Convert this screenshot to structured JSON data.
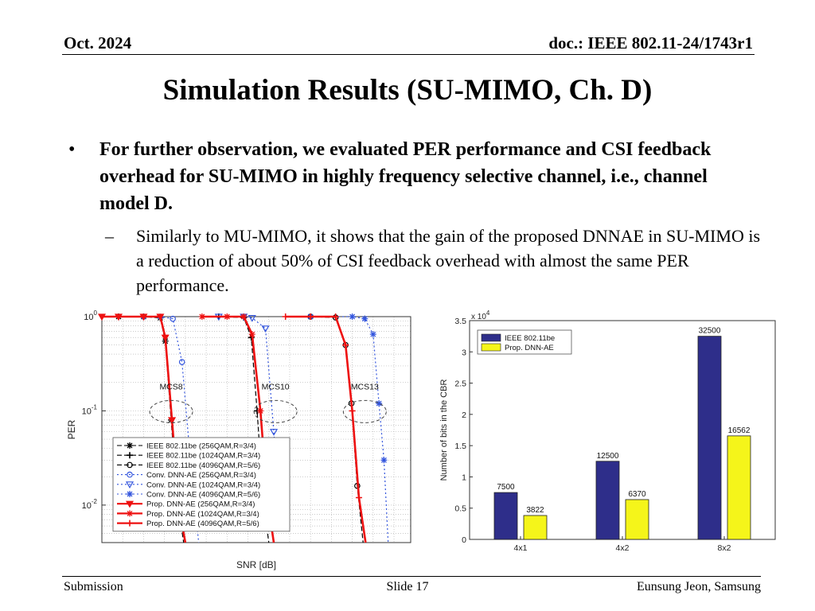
{
  "header": {
    "date": "Oct. 2024",
    "doc": "doc.: IEEE 802.11-24/1743r1"
  },
  "title": "Simulation Results (SU-MIMO, Ch. D)",
  "bullet": "For further observation, we evaluated PER performance and CSI feedback overhead for SU-MIMO in highly frequency selective channel, i.e., channel model D.",
  "sub_bullet": "Similarly to MU-MIMO, it shows that the gain of the proposed DNNAE in SU-MIMO is a reduction of about 50% of CSI feedback overhead with almost the same PER performance.",
  "bullet_marker": "•",
  "sub_bullet_marker": "–",
  "footer": {
    "left": "Submission",
    "center": "Slide 17",
    "right": "Eunsung Jeon, Samsung"
  },
  "chart_data": [
    {
      "type": "line",
      "xlabel": "SNR [dB]",
      "ylabel": "PER",
      "yscale": "log",
      "ylim": [
        0.004,
        1
      ],
      "y_ticks": [
        {
          "value": 1,
          "base": "10",
          "exp": "0"
        },
        {
          "value": 0.1,
          "base": "10",
          "exp": "-1"
        },
        {
          "value": 0.01,
          "base": "10",
          "exp": "-2"
        }
      ],
      "grid": true,
      "legend": "bottom-left",
      "annotations": [
        {
          "text": "MCS8",
          "x": 8.3,
          "y": 0.145
        },
        {
          "text": "MCS10",
          "x": 20.8,
          "y": 0.145
        },
        {
          "text": "MCS13",
          "x": 31.5,
          "y": 0.145
        }
      ],
      "series": [
        {
          "name": "IEEE 802.11be (256QAM,R=3/4)",
          "color": "#000000",
          "dash": "6,3",
          "marker": "star",
          "points": [
            [
              2,
              1
            ],
            [
              5,
              1
            ],
            [
              7,
              0.97
            ],
            [
              7.6,
              0.55
            ],
            [
              8.3,
              0.08
            ],
            [
              9,
              0.012
            ],
            [
              9.8,
              0.0025
            ]
          ]
        },
        {
          "name": "IEEE 802.11be (1024QAM,R=3/4)",
          "color": "#000000",
          "dash": "6,3",
          "marker": "plus",
          "points": [
            [
              14,
              1
            ],
            [
              17,
              0.98
            ],
            [
              17.9,
              0.6
            ],
            [
              18.6,
              0.1
            ],
            [
              19.3,
              0.012
            ],
            [
              20,
              0.0025
            ]
          ]
        },
        {
          "name": "IEEE 802.11be (4096QAM,R=5/6)",
          "color": "#000000",
          "dash": "6,3",
          "marker": "circle",
          "points": [
            [
              25,
              1
            ],
            [
              28,
              0.98
            ],
            [
              29.2,
              0.5
            ],
            [
              29.9,
              0.12
            ],
            [
              30.6,
              0.016
            ],
            [
              31.3,
              0.003
            ]
          ]
        },
        {
          "name": "Conv. DNN-AE (256QAM,R=3/4)",
          "color": "#3355dd",
          "dash": "2,3",
          "marker": "circle",
          "points": [
            [
              5,
              1
            ],
            [
              7,
              1
            ],
            [
              8.5,
              0.95
            ],
            [
              9.6,
              0.33
            ],
            [
              10.6,
              0.03
            ],
            [
              11.6,
              0.004
            ]
          ]
        },
        {
          "name": "Conv. DNN-AE (1024QAM,R=3/4)",
          "color": "#3355dd",
          "dash": "2,3",
          "marker": "triangle",
          "points": [
            [
              14,
              1
            ],
            [
              17,
              1
            ],
            [
              18,
              0.97
            ],
            [
              19.6,
              0.75
            ],
            [
              20.6,
              0.06
            ],
            [
              21.4,
              0.006
            ]
          ]
        },
        {
          "name": "Conv. DNN-AE (4096QAM,R=5/6)",
          "color": "#3355dd",
          "dash": "2,3",
          "marker": "star",
          "points": [
            [
              25,
              1
            ],
            [
              30,
              1
            ],
            [
              31.5,
              0.95
            ],
            [
              32.5,
              0.65
            ],
            [
              33.2,
              0.12
            ],
            [
              33.8,
              0.03
            ],
            [
              34.3,
              0.004
            ]
          ]
        },
        {
          "name": "Prop. DNN-AE (256QAM,R=3/4)",
          "color": "#ee1111",
          "dash": "",
          "marker": "triangle",
          "points": [
            [
              0,
              1
            ],
            [
              2,
              1
            ],
            [
              5,
              1
            ],
            [
              7,
              1
            ],
            [
              7.6,
              0.6
            ],
            [
              8.4,
              0.08
            ],
            [
              9.2,
              0.01
            ],
            [
              10,
              0.002
            ]
          ]
        },
        {
          "name": "Prop. DNN-AE (1024QAM,R=3/4)",
          "color": "#ee1111",
          "dash": "",
          "marker": "star",
          "points": [
            [
              12,
              1
            ],
            [
              15,
              1
            ],
            [
              17,
              1
            ],
            [
              18,
              0.65
            ],
            [
              19,
              0.1
            ],
            [
              19.8,
              0.012
            ],
            [
              20.6,
              0.002
            ]
          ]
        },
        {
          "name": "Prop. DNN-AE (4096QAM,R=5/6)",
          "color": "#ee1111",
          "dash": "",
          "marker": "plus",
          "points": [
            [
              22,
              1
            ],
            [
              25,
              1
            ],
            [
              28,
              1
            ],
            [
              29.2,
              0.5
            ],
            [
              30,
              0.1
            ],
            [
              30.8,
              0.012
            ],
            [
              31.6,
              0.002
            ]
          ]
        }
      ]
    },
    {
      "type": "bar",
      "categories": [
        "4x1",
        "4x2",
        "8x2"
      ],
      "ylabel": "Number of bits in the CBR",
      "y_multiplier_label": "x 10",
      "y_multiplier_exp": "4",
      "ylim": [
        0,
        35000
      ],
      "y_ticks": [
        {
          "value": 0,
          "label": "0"
        },
        {
          "value": 5000,
          "label": "0.5"
        },
        {
          "value": 10000,
          "label": "1"
        },
        {
          "value": 15000,
          "label": "1.5"
        },
        {
          "value": 20000,
          "label": "2"
        },
        {
          "value": 25000,
          "label": "2.5"
        },
        {
          "value": 30000,
          "label": "3"
        },
        {
          "value": 35000,
          "label": "3.5"
        }
      ],
      "grid": false,
      "legend": "top-left",
      "series": [
        {
          "name": "IEEE 802.11be",
          "color": "#2e2e8a",
          "values": [
            7500,
            12500,
            32500
          ]
        },
        {
          "name": "Prop. DNN-AE",
          "color": "#f5f51a",
          "values": [
            3822,
            6370,
            16562
          ]
        }
      ]
    }
  ]
}
